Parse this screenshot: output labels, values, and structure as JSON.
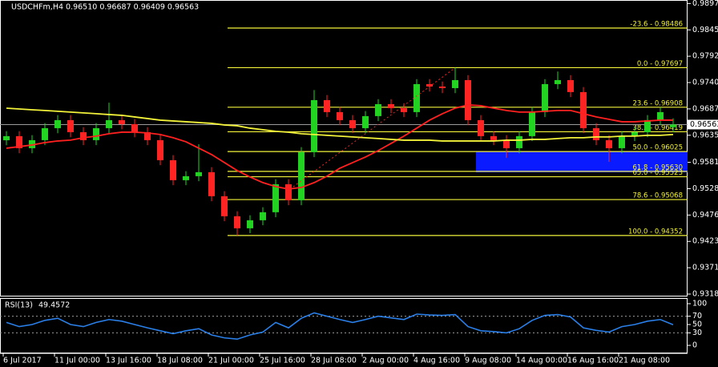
{
  "chart_data": [
    {
      "type": "candlestick",
      "title": "USDCHFm,H4  0.96510 0.96687 0.96409 0.96563",
      "categories": [
        "6 Jul 2017",
        null,
        null,
        null,
        "11 Jul 00:00",
        null,
        null,
        null,
        "13 Jul 16:00",
        null,
        null,
        null,
        "18 Jul 08:00",
        null,
        null,
        null,
        "21 Jul 00:00",
        null,
        null,
        null,
        "25 Jul 16:00",
        null,
        null,
        null,
        "28 Jul 08:00",
        null,
        null,
        null,
        "2 Aug 00:00",
        null,
        null,
        null,
        "4 Aug 16:00",
        null,
        null,
        null,
        "9 Aug 08:00",
        null,
        null,
        null,
        "14 Aug 00:00",
        null,
        null,
        null,
        "16 Aug 16:00",
        null,
        null,
        null,
        "21 Aug 08:00",
        null,
        null,
        null,
        null
      ],
      "open": [
        0.9625,
        0.96332,
        0.96092,
        0.96252,
        0.96491,
        0.96651,
        0.96411,
        0.96252,
        0.96491,
        0.96651,
        0.96571,
        0.96411,
        0.96252,
        0.95853,
        0.95454,
        0.95534,
        0.95614,
        0.95135,
        0.94736,
        0.94496,
        0.94656,
        0.94816,
        0.95374,
        0.95055,
        0.96013,
        0.9705,
        0.96811,
        0.96651,
        0.96491,
        0.96731,
        0.9697,
        0.9689,
        0.96811,
        0.97369,
        0.97321,
        0.97289,
        0.97449,
        0.96651,
        0.96332,
        0.96252,
        0.96092,
        0.96332,
        0.96811,
        0.97369,
        0.97449,
        0.9721,
        0.96491,
        0.96252,
        0.96092,
        0.96332,
        0.96411,
        0.96651,
        0.9651
      ],
      "high": [
        0.96432,
        0.96432,
        0.96352,
        0.96591,
        0.96751,
        0.96751,
        0.96511,
        0.96591,
        0.97,
        0.96751,
        0.96671,
        0.96511,
        0.96352,
        0.95953,
        0.95634,
        0.9617,
        0.95714,
        0.95235,
        0.94836,
        0.94756,
        0.94916,
        0.95474,
        0.95474,
        0.96113,
        0.9725,
        0.9715,
        0.96911,
        0.96751,
        0.96831,
        0.9707,
        0.9707,
        0.9699,
        0.97469,
        0.97469,
        0.97421,
        0.97697,
        0.97549,
        0.96751,
        0.96432,
        0.96352,
        0.96432,
        0.96911,
        0.97469,
        0.9762,
        0.97549,
        0.9731,
        0.96591,
        0.96352,
        0.96432,
        0.96511,
        0.96751,
        0.96911,
        0.96687
      ],
      "low": [
        0.9615,
        0.95992,
        0.95992,
        0.96152,
        0.96391,
        0.96311,
        0.96152,
        0.96152,
        0.96391,
        0.96471,
        0.96311,
        0.96152,
        0.95753,
        0.95354,
        0.95354,
        0.95434,
        0.95035,
        0.94636,
        0.94352,
        0.94396,
        0.94556,
        0.94716,
        0.94955,
        0.94955,
        0.95913,
        0.96711,
        0.96551,
        0.96391,
        0.96391,
        0.96631,
        0.9679,
        0.96711,
        0.96711,
        0.97221,
        0.97189,
        0.97189,
        0.96551,
        0.96232,
        0.96152,
        0.959,
        0.95992,
        0.96232,
        0.96711,
        0.97269,
        0.9711,
        0.96391,
        0.96152,
        0.9582,
        0.95992,
        0.96232,
        0.96311,
        0.96551,
        0.96409
      ],
      "close": [
        0.96332,
        0.96092,
        0.96252,
        0.96491,
        0.96651,
        0.96411,
        0.96252,
        0.96491,
        0.96651,
        0.96571,
        0.96411,
        0.96252,
        0.95853,
        0.95454,
        0.95534,
        0.95614,
        0.95135,
        0.94736,
        0.94496,
        0.94656,
        0.94816,
        0.95374,
        0.95055,
        0.96013,
        0.9705,
        0.96811,
        0.96651,
        0.96491,
        0.96731,
        0.9697,
        0.9689,
        0.96811,
        0.97369,
        0.97321,
        0.97289,
        0.97449,
        0.96651,
        0.96332,
        0.96252,
        0.96092,
        0.96332,
        0.96811,
        0.97369,
        0.97449,
        0.9721,
        0.96491,
        0.96252,
        0.96092,
        0.96332,
        0.96411,
        0.96651,
        0.96811,
        0.96563
      ],
      "bull_color": "#22d322",
      "bear_color": "#ff2424",
      "overlays": [
        {
          "color": "#ff2020",
          "values": [
            0.96092,
            0.96124,
            0.96156,
            0.96204,
            0.96236,
            0.96252,
            0.963,
            0.96332,
            0.9638,
            0.96411,
            0.96411,
            0.96396,
            0.96364,
            0.963,
            0.9622,
            0.96092,
            0.95965,
            0.95805,
            0.95645,
            0.95518,
            0.95406,
            0.95326,
            0.95278,
            0.9531,
            0.95406,
            0.95534,
            0.95693,
            0.95805,
            0.95917,
            0.96045,
            0.96188,
            0.96332,
            0.96491,
            0.96651,
            0.96779,
            0.9689,
            0.96954,
            0.96938,
            0.9689,
            0.96843,
            0.96811,
            0.96811,
            0.96827,
            0.96843,
            0.96843,
            0.96779,
            0.96715,
            0.96667,
            0.96619,
            0.96619,
            0.96635,
            0.96651,
            0.96651
          ]
        },
        {
          "color": "#f2f23a",
          "values": [
            0.9689,
            0.96874,
            0.96858,
            0.96843,
            0.96827,
            0.96811,
            0.96795,
            0.96779,
            0.96763,
            0.96747,
            0.96715,
            0.96683,
            0.96651,
            0.96635,
            0.96619,
            0.96603,
            0.96587,
            0.96555,
            0.96539,
            0.96491,
            0.9646,
            0.96428,
            0.96411,
            0.9638,
            0.96364,
            0.96348,
            0.96332,
            0.96316,
            0.963,
            0.96284,
            0.96268,
            0.96252,
            0.96252,
            0.96252,
            0.96236,
            0.96236,
            0.96236,
            0.96236,
            0.96236,
            0.96252,
            0.96252,
            0.96268,
            0.96268,
            0.96284,
            0.963,
            0.963,
            0.96316,
            0.96316,
            0.96332,
            0.96332,
            0.96348,
            0.96348,
            0.96364
          ]
        }
      ],
      "fib_color": "#f2f23a",
      "fib_levels": [
        {
          "label": "-23.6 - 0.98486",
          "value": 0.98486
        },
        {
          "label": "0.0 - 0.97697",
          "value": 0.97697
        },
        {
          "label": "23.6 - 0.96908",
          "value": 0.96908
        },
        {
          "label": "38.2 - 0.96419",
          "value": 0.96419
        },
        {
          "label": "50.0 - 0.96025",
          "value": 0.96025
        },
        {
          "label": "61.8 - 0.95630",
          "value": 0.9563
        },
        {
          "label": "65.0 - 0.95523",
          "value": 0.95523
        },
        {
          "label": "78.6 - 0.95068",
          "value": 0.95068
        },
        {
          "label": "100.0 - 0.94352",
          "value": 0.94352
        }
      ],
      "zone": {
        "from": 0.9561,
        "to": 0.96025,
        "color": "#0a1cff"
      },
      "last_price": 0.96563,
      "ylim": [
        0.93137,
        0.99045
      ],
      "yticks": [
        0.98975,
        {
          "value": 0.9845,
          "label": "0.98450"
        },
        0.97925,
        {
          "value": 0.974,
          "label": "0.97400"
        },
        0.96875,
        {
          "value": 0.9635,
          "label": "0.96350"
        },
        {
          "value": 0.9581,
          "label": "0.95810"
        },
        0.95285,
        {
          "value": 0.9476,
          "label": "0.94760"
        },
        0.94235,
        {
          "value": 0.9371,
          "label": "0.93710"
        },
        0.93185
      ]
    },
    {
      "type": "line",
      "title": "RSI(13)",
      "color": "#2a7fe8",
      "values": [
        55,
        45,
        50,
        60,
        65,
        50,
        45,
        55,
        62,
        58,
        50,
        42,
        35,
        28,
        35,
        40,
        25,
        18,
        15,
        25,
        32,
        55,
        42,
        65,
        78,
        70,
        62,
        55,
        62,
        70,
        66,
        62,
        75,
        73,
        72,
        74,
        45,
        35,
        33,
        30,
        40,
        60,
        72,
        74,
        68,
        42,
        36,
        32,
        45,
        50,
        58,
        62,
        49.4572
      ],
      "levels": [
        70,
        30
      ],
      "ylim": [
        0,
        100
      ],
      "yticks": [
        100,
        70,
        50,
        30,
        0
      ]
    }
  ]
}
